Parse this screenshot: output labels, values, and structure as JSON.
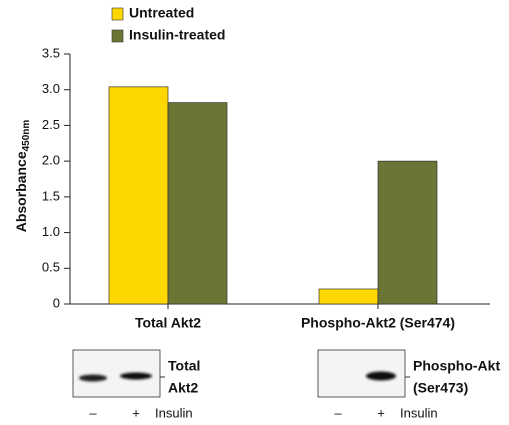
{
  "chart_data": {
    "type": "bar",
    "categories": [
      "Total Akt2",
      "Phospho-Akt2 (Ser474)"
    ],
    "series": [
      {
        "name": "Untreated",
        "color": "#ffd700",
        "values": [
          3.04,
          0.21
        ]
      },
      {
        "name": "Insulin-treated",
        "color": "#6b7536",
        "values": [
          2.82,
          2.0
        ]
      }
    ],
    "ylim": [
      0,
      3.5
    ],
    "yticks": [
      0,
      0.5,
      {
        "value": 1,
        "label": "1.0"
      },
      1.5,
      {
        "value": 2,
        "label": "2.0"
      },
      2.5,
      {
        "value": 3,
        "label": "3.0"
      },
      3.5
    ],
    "ylabel": "Absorbance",
    "ylabel_subscript": "450nm"
  },
  "blots": [
    {
      "label_lines": [
        "Total",
        "Akt2"
      ],
      "lanes": [
        "–",
        "+"
      ],
      "treatment": "Insulin"
    },
    {
      "label_lines": [
        "Phospho-Akt",
        "(Ser473)"
      ],
      "lanes": [
        "–",
        "+"
      ],
      "treatment": "Insulin"
    }
  ]
}
